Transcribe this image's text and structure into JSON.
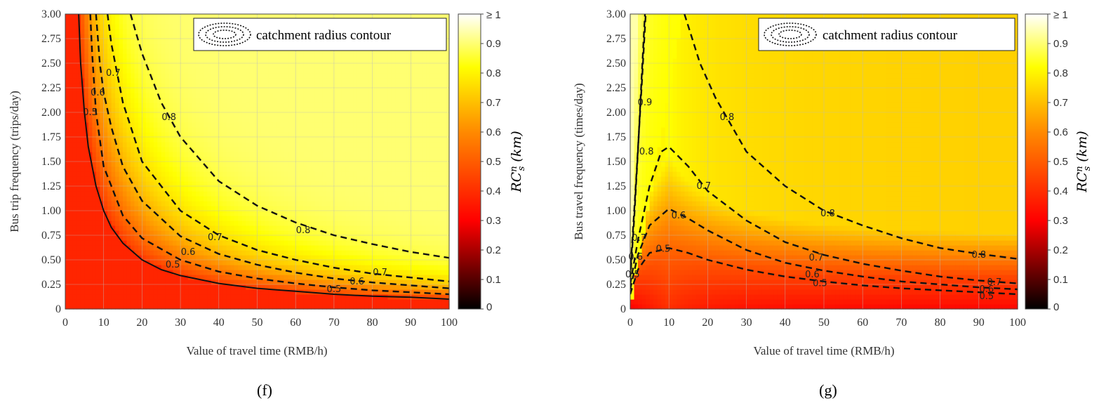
{
  "colors": {
    "cmap": [
      "#000000",
      "#ff0000",
      "#ff8a00",
      "#ffff00",
      "#ffffff"
    ],
    "contour": "#111111",
    "grid": "#bbbbbb"
  },
  "chart_data": [
    {
      "type": "heatmap",
      "panel_label": "(f)",
      "xlabel": "Value of travel time (RMB/h)",
      "ylabel": "Bus trip frequency (trips/day)",
      "xlim": [
        0,
        100
      ],
      "ylim": [
        0,
        3
      ],
      "xticks": [
        "0",
        "10",
        "20",
        "30",
        "40",
        "50",
        "60",
        "70",
        "80",
        "90",
        "100"
      ],
      "yticks": [
        "0",
        "0.25",
        "0.50",
        "0.75",
        "1.00",
        "1.25",
        "1.50",
        "1.75",
        "2.00",
        "2.25",
        "2.50",
        "2.75",
        "3.00"
      ],
      "legend": "catchment radius contour",
      "colorbar": {
        "title": "RC",
        "title_sup": "n",
        "title_sub": "s",
        "unit": "(km)",
        "ticks": [
          "0",
          "0.1",
          "0.2",
          "0.3",
          "0.4",
          "0.5",
          "0.6",
          "0.7",
          "0.8",
          "0.9",
          "≥ 1"
        ]
      },
      "contours": [
        {
          "level": "0.5",
          "style": "dashed",
          "points": [
            [
              6.5,
              3.0
            ],
            [
              7,
              2.6
            ],
            [
              8,
              2.0
            ],
            [
              10,
              1.45
            ],
            [
              15,
              0.95
            ],
            [
              20,
              0.72
            ],
            [
              30,
              0.5
            ],
            [
              40,
              0.38
            ],
            [
              50,
              0.31
            ],
            [
              60,
              0.26
            ],
            [
              70,
              0.22
            ],
            [
              80,
              0.19
            ],
            [
              90,
              0.17
            ],
            [
              100,
              0.15
            ]
          ],
          "labels": [
            {
              "x": 6.5,
              "y": 2.0,
              "text": "0.5"
            },
            {
              "x": 28,
              "y": 0.45,
              "text": "0.5"
            },
            {
              "x": 70,
              "y": 0.2,
              "text": "0.5"
            }
          ]
        },
        {
          "level": "0.6",
          "style": "dashed",
          "points": [
            [
              8,
              3.0
            ],
            [
              9,
              2.5
            ],
            [
              10,
              2.2
            ],
            [
              12,
              1.85
            ],
            [
              15,
              1.45
            ],
            [
              20,
              1.1
            ],
            [
              30,
              0.74
            ],
            [
              40,
              0.56
            ],
            [
              50,
              0.45
            ],
            [
              60,
              0.37
            ],
            [
              70,
              0.31
            ],
            [
              80,
              0.27
            ],
            [
              90,
              0.24
            ],
            [
              100,
              0.21
            ]
          ],
          "labels": [
            {
              "x": 8.5,
              "y": 2.2,
              "text": "0.6"
            },
            {
              "x": 32,
              "y": 0.58,
              "text": "0.6"
            },
            {
              "x": 76,
              "y": 0.28,
              "text": "0.6"
            }
          ]
        },
        {
          "level": "0.7",
          "style": "dashed",
          "points": [
            [
              11,
              3.0
            ],
            [
              12,
              2.7
            ],
            [
              15,
              2.1
            ],
            [
              20,
              1.5
            ],
            [
              30,
              1.0
            ],
            [
              40,
              0.75
            ],
            [
              50,
              0.6
            ],
            [
              60,
              0.5
            ],
            [
              70,
              0.42
            ],
            [
              80,
              0.36
            ],
            [
              90,
              0.32
            ],
            [
              100,
              0.28
            ]
          ],
          "labels": [
            {
              "x": 12.5,
              "y": 2.4,
              "text": "0.7"
            },
            {
              "x": 39,
              "y": 0.73,
              "text": "0.7"
            },
            {
              "x": 82,
              "y": 0.37,
              "text": "0.7"
            }
          ]
        },
        {
          "level": "0.8",
          "style": "dashed",
          "points": [
            [
              17,
              3.0
            ],
            [
              20,
              2.6
            ],
            [
              25,
              2.1
            ],
            [
              30,
              1.75
            ],
            [
              40,
              1.3
            ],
            [
              50,
              1.05
            ],
            [
              60,
              0.88
            ],
            [
              70,
              0.75
            ],
            [
              80,
              0.66
            ],
            [
              90,
              0.58
            ],
            [
              100,
              0.52
            ]
          ],
          "labels": [
            {
              "x": 27,
              "y": 1.95,
              "text": "0.8"
            },
            {
              "x": 62,
              "y": 0.8,
              "text": "0.8"
            }
          ]
        },
        {
          "level": "boundary",
          "style": "solid",
          "points": [
            [
              3.5,
              3.0
            ],
            [
              4,
              2.5
            ],
            [
              5,
              2.0
            ],
            [
              6,
              1.65
            ],
            [
              8,
              1.25
            ],
            [
              10,
              1.0
            ],
            [
              12,
              0.83
            ],
            [
              15,
              0.67
            ],
            [
              20,
              0.5
            ],
            [
              25,
              0.4
            ],
            [
              30,
              0.34
            ],
            [
              40,
              0.26
            ],
            [
              50,
              0.21
            ],
            [
              60,
              0.18
            ],
            [
              70,
              0.15
            ],
            [
              80,
              0.13
            ],
            [
              90,
              0.12
            ],
            [
              100,
              0.1
            ]
          ],
          "labels": []
        }
      ]
    },
    {
      "type": "heatmap",
      "panel_label": "(g)",
      "xlabel": "Value of travel time (RMB/h)",
      "ylabel": "Bus travel frequency (times/day)",
      "xlim": [
        0,
        100
      ],
      "ylim": [
        0,
        3
      ],
      "xticks": [
        "0",
        "10",
        "20",
        "30",
        "40",
        "50",
        "60",
        "70",
        "80",
        "90",
        "100"
      ],
      "yticks": [
        "0",
        "0.25",
        "0.50",
        "0.75",
        "1.00",
        "1.25",
        "1.50",
        "1.75",
        "2.00",
        "2.25",
        "2.50",
        "2.75",
        "3.00"
      ],
      "legend": "catchment radius contour",
      "colorbar": {
        "title": "RC",
        "title_sup": "n",
        "title_sub": "s",
        "unit": "(km)",
        "ticks": [
          "0",
          "0.1",
          "0.2",
          "0.3",
          "0.4",
          "0.5",
          "0.6",
          "0.7",
          "0.8",
          "0.9",
          "≥ 1"
        ]
      },
      "contours": [
        {
          "level": "0.5",
          "style": "dashed",
          "points": [
            [
              0,
              0.15
            ],
            [
              2,
              0.4
            ],
            [
              5,
              0.57
            ],
            [
              10,
              0.62
            ],
            [
              15,
              0.57
            ],
            [
              20,
              0.5
            ],
            [
              30,
              0.4
            ],
            [
              40,
              0.33
            ],
            [
              50,
              0.28
            ],
            [
              60,
              0.24
            ],
            [
              70,
              0.21
            ],
            [
              80,
              0.19
            ],
            [
              90,
              0.17
            ],
            [
              100,
              0.15
            ]
          ],
          "labels": [
            {
              "x": 0.6,
              "y": 0.35,
              "text": "0.5"
            },
            {
              "x": 8.5,
              "y": 0.61,
              "text": "0.5"
            },
            {
              "x": 49,
              "y": 0.26,
              "text": "0.5"
            },
            {
              "x": 92,
              "y": 0.13,
              "text": "0.5"
            }
          ]
        },
        {
          "level": "0.6",
          "style": "dashed",
          "points": [
            [
              0,
              0.2
            ],
            [
              2,
              0.55
            ],
            [
              5,
              0.85
            ],
            [
              10,
              1.02
            ],
            [
              15,
              0.92
            ],
            [
              20,
              0.8
            ],
            [
              30,
              0.6
            ],
            [
              40,
              0.47
            ],
            [
              50,
              0.39
            ],
            [
              60,
              0.33
            ],
            [
              70,
              0.28
            ],
            [
              80,
              0.25
            ],
            [
              90,
              0.22
            ],
            [
              100,
              0.2
            ]
          ],
          "labels": [
            {
              "x": 1.4,
              "y": 0.53,
              "text": "0.6"
            },
            {
              "x": 12.5,
              "y": 0.95,
              "text": "0.6"
            },
            {
              "x": 47,
              "y": 0.35,
              "text": "0.6"
            },
            {
              "x": 92,
              "y": 0.2,
              "text": "0.6"
            }
          ]
        },
        {
          "level": "0.7",
          "style": "dashed",
          "points": [
            [
              0,
              0.25
            ],
            [
              2,
              0.7
            ],
            [
              5,
              1.25
            ],
            [
              8,
              1.6
            ],
            [
              10,
              1.65
            ],
            [
              15,
              1.45
            ],
            [
              20,
              1.2
            ],
            [
              30,
              0.9
            ],
            [
              40,
              0.68
            ],
            [
              50,
              0.55
            ],
            [
              60,
              0.46
            ],
            [
              70,
              0.39
            ],
            [
              80,
              0.33
            ],
            [
              90,
              0.29
            ],
            [
              100,
              0.26
            ]
          ],
          "labels": [
            {
              "x": 2.3,
              "y": 0.72,
              "text": "0.7"
            },
            {
              "x": 19,
              "y": 1.25,
              "text": "0.7"
            },
            {
              "x": 48,
              "y": 0.52,
              "text": "0.7"
            },
            {
              "x": 94,
              "y": 0.27,
              "text": "0.7"
            }
          ]
        },
        {
          "level": "0.8",
          "style": "dashed",
          "points": [
            [
              0,
              0.3
            ],
            [
              1,
              0.9
            ],
            [
              2,
              1.6
            ],
            [
              3,
              2.4
            ],
            [
              3.8,
              3.0
            ]
          ],
          "labels": [
            {
              "x": 4.2,
              "y": 1.6,
              "text": "0.8"
            }
          ]
        },
        {
          "level": "0.8",
          "style": "dashed",
          "points": [
            [
              14,
              3.0
            ],
            [
              18,
              2.5
            ],
            [
              22,
              2.15
            ],
            [
              30,
              1.6
            ],
            [
              40,
              1.25
            ],
            [
              50,
              1.0
            ],
            [
              60,
              0.85
            ],
            [
              70,
              0.72
            ],
            [
              80,
              0.62
            ],
            [
              90,
              0.56
            ],
            [
              100,
              0.51
            ]
          ],
          "labels": [
            {
              "x": 25,
              "y": 1.95,
              "text": "0.8"
            },
            {
              "x": 51,
              "y": 0.97,
              "text": "0.8"
            },
            {
              "x": 90,
              "y": 0.55,
              "text": "0.8"
            }
          ]
        },
        {
          "level": "0.9",
          "style": "dashed",
          "points": [
            [
              0,
              0.35
            ],
            [
              1.5,
              1.3
            ],
            [
              3,
              2.3
            ],
            [
              4,
              3.0
            ]
          ],
          "labels": [
            {
              "x": 3.8,
              "y": 2.1,
              "text": "0.9"
            }
          ]
        }
      ]
    }
  ]
}
